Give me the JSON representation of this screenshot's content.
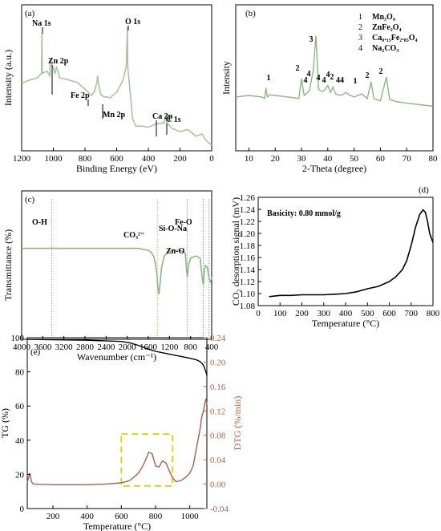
{
  "colors": {
    "green": "#8fb387",
    "black": "#000000",
    "brown": "#a8614d",
    "dashed_box": "#d9d000",
    "xps_line": "#a8c59d",
    "ir_gray": "#9b9b9b",
    "ir_orange": "#e3b071"
  },
  "chart_data": [
    {
      "panel": "(a)",
      "type": "line",
      "xlabel": "Binding Energy (eV)",
      "ylabel": "Intensity (a.u.)",
      "xlim": [
        1200,
        0
      ],
      "x_reversed": true,
      "xticks": [
        "1200",
        "1000",
        "800",
        "600",
        "400",
        "200",
        "0"
      ],
      "series": [
        {
          "x": [
            1200,
            1150,
            1100,
            1075,
            1072,
            1070,
            1040,
            1022,
            1020,
            990,
            980,
            960,
            900,
            850,
            800,
            760,
            740,
            725,
            720,
            715,
            700,
            680,
            660,
            640,
            620,
            600,
            560,
            540,
            532,
            530,
            520,
            500,
            480,
            440,
            400,
            350,
            300,
            290,
            285,
            270,
            250,
            200,
            150,
            100,
            60,
            40,
            0
          ],
          "y": [
            0.55,
            0.58,
            0.6,
            0.64,
            1.0,
            0.64,
            0.66,
            0.62,
            0.77,
            0.64,
            0.7,
            0.6,
            0.58,
            0.56,
            0.5,
            0.44,
            0.48,
            0.56,
            0.62,
            0.55,
            0.45,
            0.43,
            0.43,
            0.42,
            0.45,
            0.47,
            0.58,
            0.7,
            1.05,
            0.7,
            0.55,
            0.24,
            0.17,
            0.17,
            0.16,
            0.19,
            0.2,
            0.27,
            0.2,
            0.18,
            0.15,
            0.12,
            0.14,
            0.08,
            0.1,
            0.05,
            0.0
          ]
        }
      ],
      "annotations": [
        {
          "label": "Na 1s",
          "x": 1072
        },
        {
          "label": "Zn 2p",
          "x": 1022
        },
        {
          "label": "Fe 2p",
          "x": 712
        },
        {
          "label": "Mn 2p",
          "x": 642
        },
        {
          "label": "O 1s",
          "x": 531
        },
        {
          "label": "Ca 2p",
          "x": 347
        },
        {
          "label": "C 1s",
          "x": 285
        }
      ]
    },
    {
      "panel": "(b)",
      "type": "line",
      "xlabel": "2-Theta (degree)",
      "ylabel": "Intensity",
      "xlim": [
        5,
        80
      ],
      "xticks": [
        "10",
        "20",
        "30",
        "40",
        "50",
        "60",
        "70",
        "80"
      ],
      "legend": [
        {
          "num": "1",
          "name": "Mn₃O₄"
        },
        {
          "num": "2",
          "name": "ZnFe₂O₄"
        },
        {
          "num": "3",
          "name": "Ca₀.₁₅Fe₂.₈₅O₄"
        },
        {
          "num": "4",
          "name": "Na₂CO₃"
        }
      ],
      "legend_position": "top-right",
      "series": [
        {
          "x": [
            5,
            10,
            15,
            16,
            16.5,
            17,
            18,
            20,
            25,
            29,
            30,
            31,
            33,
            34.5,
            35.5,
            36.5,
            38,
            39,
            40,
            41,
            42,
            43,
            45,
            47,
            48,
            50,
            53,
            55,
            56.5,
            57.5,
            60,
            62.3,
            63.5,
            66,
            70,
            75,
            80
          ],
          "y": [
            0.2,
            0.22,
            0.2,
            0.18,
            0.32,
            0.2,
            0.23,
            0.22,
            0.2,
            0.18,
            0.44,
            0.22,
            0.28,
            0.55,
            1.0,
            0.3,
            0.27,
            0.3,
            0.35,
            0.26,
            0.33,
            0.24,
            0.22,
            0.26,
            0.23,
            0.2,
            0.24,
            0.18,
            0.4,
            0.18,
            0.15,
            0.46,
            0.17,
            0.14,
            0.12,
            0.1,
            0.08
          ]
        }
      ],
      "peak_labels": [
        {
          "label": "1",
          "x": 18
        },
        {
          "label": "2",
          "x": 30
        },
        {
          "label": "4",
          "x": 33
        },
        {
          "label": "4",
          "x": 34.6
        },
        {
          "label": "3",
          "x": 35.5
        },
        {
          "label": "4",
          "x": 38.5
        },
        {
          "label": "4",
          "x": 40
        },
        {
          "label": "4",
          "x": 41.5
        },
        {
          "label": "2",
          "x": 43
        },
        {
          "label": "44",
          "x": 47.5
        },
        {
          "label": "1",
          "x": 53
        },
        {
          "label": "2",
          "x": 57
        },
        {
          "label": "2",
          "x": 62.5
        }
      ]
    },
    {
      "panel": "(c)",
      "type": "line",
      "xlabel": "Wavenumber (cm⁻¹)",
      "ylabel": "Transmittance (%)",
      "xlim": [
        4000,
        400
      ],
      "x_reversed": true,
      "xticks": [
        "4000",
        "3600",
        "3200",
        "2800",
        "2400",
        "2000",
        "1600",
        "1200",
        "800",
        "400"
      ],
      "series": [
        {
          "x": [
            4000,
            3500,
            3000,
            2500,
            2000,
            1800,
            1700,
            1600,
            1550,
            1500,
            1470,
            1440,
            1420,
            1400,
            1380,
            1350,
            1300,
            1200,
            1100,
            1000,
            900,
            880,
            860,
            840,
            800,
            700,
            620,
            580,
            560,
            540,
            520,
            480,
            450,
            420,
            400
          ],
          "y": [
            0.6,
            0.6,
            0.6,
            0.6,
            0.6,
            0.6,
            0.59,
            0.58,
            0.56,
            0.52,
            0.45,
            0.35,
            0.2,
            0.12,
            0.22,
            0.4,
            0.52,
            0.57,
            0.58,
            0.58,
            0.55,
            0.4,
            0.3,
            0.42,
            0.5,
            0.52,
            0.5,
            0.3,
            0.22,
            0.35,
            0.42,
            0.4,
            0.28,
            0.25,
            0.3
          ]
        }
      ],
      "annotations": [
        {
          "label": "O-H",
          "x": 3430
        },
        {
          "label": "CO₃²⁻",
          "x": 1430
        },
        {
          "label": "Si-O-Na",
          "x": 865
        },
        {
          "label": "Zn-O",
          "x": 560
        },
        {
          "label": "Fe-O",
          "x": 450
        }
      ]
    },
    {
      "panel": "(d)",
      "type": "line",
      "xlabel": "Temperature (°C)",
      "ylabel": "CO₂ desorption signal (mV)",
      "xlim": [
        0,
        800
      ],
      "ylim": [
        1.08,
        1.26
      ],
      "xticks": [
        "0",
        "100",
        "200",
        "300",
        "400",
        "500",
        "600",
        "700",
        "800"
      ],
      "yticks": [
        "1.08",
        "1.10",
        "1.12",
        "1.14",
        "1.16",
        "1.18",
        "1.20",
        "1.22",
        "1.24",
        "1.26"
      ],
      "annotation": "Basicity: 0.80 mmol/g",
      "series": [
        {
          "x": [
            50,
            100,
            150,
            200,
            250,
            300,
            350,
            400,
            450,
            500,
            550,
            600,
            630,
            660,
            680,
            700,
            720,
            740,
            755,
            765,
            775,
            785,
            800
          ],
          "y": [
            1.095,
            1.097,
            1.097,
            1.098,
            1.098,
            1.098,
            1.099,
            1.1,
            1.103,
            1.108,
            1.112,
            1.12,
            1.128,
            1.14,
            1.155,
            1.18,
            1.21,
            1.232,
            1.239,
            1.235,
            1.22,
            1.2,
            1.185
          ]
        }
      ]
    },
    {
      "panel": "(e)",
      "type": "line",
      "xlabel": "Temperature (°C)",
      "ylabel": "TG (%)",
      "ylabel_right": "DTG (%/min)",
      "xlim": [
        50,
        1100
      ],
      "ylim": [
        0,
        100
      ],
      "ylim_right": [
        -0.04,
        0.24
      ],
      "xticks": [
        "200",
        "400",
        "600",
        "800",
        "1000"
      ],
      "yticks": [
        "0",
        "20",
        "40",
        "60",
        "80",
        "100"
      ],
      "yticks_right": [
        "-0.04",
        "0.00",
        "0.04",
        "0.08",
        "0.12",
        "0.16",
        "0.20",
        "0.24"
      ],
      "series": [
        {
          "name": "TG",
          "axis": "left",
          "x": [
            50,
            200,
            400,
            600,
            650,
            700,
            750,
            800,
            850,
            900,
            950,
            1000,
            1040,
            1060,
            1080,
            1095,
            1100
          ],
          "y": [
            99,
            98.8,
            98.5,
            97.8,
            97,
            95.5,
            93.5,
            92,
            91,
            90,
            89,
            88,
            87,
            86,
            84,
            80,
            78
          ]
        },
        {
          "name": "DTG",
          "axis": "right",
          "x": [
            50,
            65,
            75,
            85,
            100,
            200,
            300,
            400,
            500,
            600,
            650,
            700,
            730,
            760,
            780,
            800,
            820,
            840,
            860,
            880,
            900,
            920,
            950,
            980,
            1000,
            1020,
            1040,
            1060,
            1070,
            1080,
            1090,
            1095,
            1100
          ],
          "y": [
            0.003,
            0.018,
            0.004,
            0.0,
            0.0,
            -0.001,
            -0.001,
            -0.001,
            0.0,
            0.002,
            0.006,
            0.018,
            0.032,
            0.052,
            0.05,
            0.03,
            0.028,
            0.038,
            0.035,
            0.022,
            0.01,
            0.004,
            0.006,
            0.012,
            0.018,
            0.03,
            0.06,
            0.09,
            0.11,
            0.12,
            0.135,
            0.14,
            0.13
          ]
        }
      ],
      "highlight_box": {
        "x": [
          600,
          900
        ],
        "y_right": [
          -0.003,
          0.082
        ]
      }
    }
  ]
}
